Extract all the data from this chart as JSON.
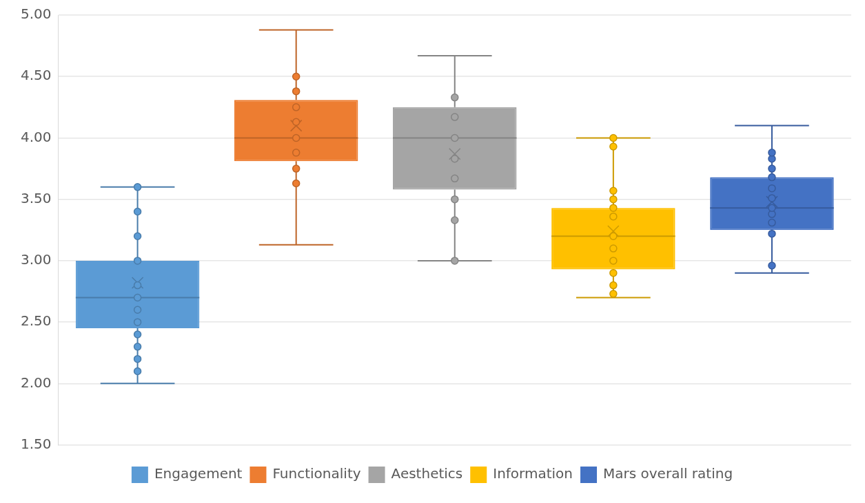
{
  "chart_data": {
    "type": "box",
    "categories": [
      null,
      null,
      null,
      null,
      null
    ],
    "ylim": [
      1.5,
      5
    ],
    "yticks": [
      {
        "value": 1.5,
        "label": "1.50"
      },
      {
        "value": 2,
        "label": "2.00"
      },
      {
        "value": 2.5,
        "label": "2.50"
      },
      {
        "value": 3,
        "label": "3.00"
      },
      {
        "value": 3.5,
        "label": "3.50"
      },
      {
        "value": 4,
        "label": "4.00"
      },
      {
        "value": 4.5,
        "label": "4.50"
      },
      {
        "value": 5,
        "label": "5.00"
      }
    ],
    "grid": "y",
    "legend": "bottom",
    "marker": "circle",
    "series": [
      {
        "name": "Engagement",
        "color": "#5b9bd5",
        "boxes": [
          {
            "low": 2.0,
            "q1": 2.45,
            "median": 2.7,
            "q3": 3.0,
            "high": 3.6,
            "mean": 2.82
          },
          null,
          null,
          null,
          null
        ]
      },
      {
        "name": "Functionality",
        "color": "#ed7d31",
        "boxes": [
          null,
          {
            "low": 3.13,
            "q1": 3.81,
            "median": 4.0,
            "q3": 4.31,
            "high": 4.88,
            "mean": 4.1
          },
          null,
          null,
          null
        ]
      },
      {
        "name": "Aesthetics",
        "color": "#a5a5a5",
        "boxes": [
          null,
          null,
          {
            "low": 3.0,
            "q1": 3.58,
            "median": 4.0,
            "q3": 4.25,
            "high": 4.67,
            "mean": 3.87
          },
          null,
          null
        ]
      },
      {
        "name": "Information",
        "color": "#ffc000",
        "boxes": [
          null,
          null,
          null,
          {
            "low": 2.7,
            "q1": 2.93,
            "median": 3.2,
            "q3": 3.43,
            "high": 4.0,
            "mean": 3.24
          },
          null
        ]
      },
      {
        "name": "Mars overall rating",
        "color": "#4472c4",
        "boxes": [
          null,
          null,
          null,
          null,
          {
            "low": 2.9,
            "q1": 3.25,
            "median": 3.43,
            "q3": 3.68,
            "high": 4.1,
            "mean": 3.48
          }
        ]
      },
      {
        "type": "scatter",
        "colors": [
          "#5b9bd5",
          "#ed7d31",
          "#a5a5a5",
          "#ffc000",
          "#4472c4"
        ],
        "values": [
          3.6,
          4.5,
          4.33,
          4.0,
          3.88
        ]
      },
      {
        "type": "scatter",
        "colors": [
          "#5b9bd5",
          "#ed7d31",
          "#a5a5a5",
          "#ffc000",
          "#4472c4"
        ],
        "values": [
          3.4,
          4.38,
          4.17,
          3.93,
          3.83
        ]
      },
      {
        "type": "scatter",
        "colors": [
          "#5b9bd5",
          "#ed7d31",
          "#a5a5a5",
          "#ffc000",
          "#4472c4"
        ],
        "values": [
          3.2,
          4.25,
          4.0,
          3.57,
          3.75
        ]
      },
      {
        "type": "scatter",
        "colors": [
          "#5b9bd5",
          "#ed7d31",
          "#a5a5a5",
          "#ffc000",
          "#4472c4"
        ],
        "values": [
          3.0,
          4.13,
          3.83,
          3.5,
          3.68
        ]
      },
      {
        "type": "scatter",
        "colors": [
          "#5b9bd5",
          "#ed7d31",
          "#a5a5a5",
          "#ffc000",
          "#4472c4"
        ],
        "values": [
          2.8,
          4.0,
          3.67,
          3.43,
          3.59
        ]
      },
      {
        "type": "scatter",
        "colors": [
          "#5b9bd5",
          "#ed7d31",
          "#a5a5a5",
          "#ffc000",
          "#4472c4"
        ],
        "values": [
          2.7,
          3.88,
          3.5,
          3.36,
          3.51
        ]
      },
      {
        "type": "scatter",
        "colors": [
          "#5b9bd5",
          "#ed7d31",
          "#a5a5a5",
          "#ffc000",
          "#4472c4"
        ],
        "values": [
          2.6,
          3.75,
          3.33,
          3.2,
          3.43
        ]
      },
      {
        "type": "scatter",
        "colors": [
          "#5b9bd5",
          "#ed7d31",
          "#a5a5a5",
          "#ffc000",
          "#4472c4"
        ],
        "values": [
          2.5,
          3.63,
          3.0,
          3.1,
          3.38
        ]
      },
      {
        "type": "scatter",
        "colors": [
          "#5b9bd5",
          "#ed7d31",
          "#a5a5a5",
          "#ffc000",
          "#4472c4"
        ],
        "values": [
          2.4,
          null,
          null,
          3.0,
          3.31
        ]
      },
      {
        "type": "scatter",
        "colors": [
          "#5b9bd5",
          "#ed7d31",
          "#a5a5a5",
          "#ffc000",
          "#4472c4"
        ],
        "values": [
          2.3,
          null,
          null,
          2.9,
          3.22
        ]
      },
      {
        "type": "scatter",
        "colors": [
          "#5b9bd5",
          "#ed7d31",
          "#a5a5a5",
          "#ffc000",
          "#4472c4"
        ],
        "values": [
          2.2,
          null,
          null,
          2.8,
          2.96
        ]
      },
      {
        "type": "scatter",
        "colors": [
          "#5b9bd5",
          "#ed7d31",
          "#a5a5a5",
          "#ffc000",
          "#4472c4"
        ],
        "values": [
          2.1,
          null,
          null,
          2.73,
          null
        ]
      }
    ]
  }
}
